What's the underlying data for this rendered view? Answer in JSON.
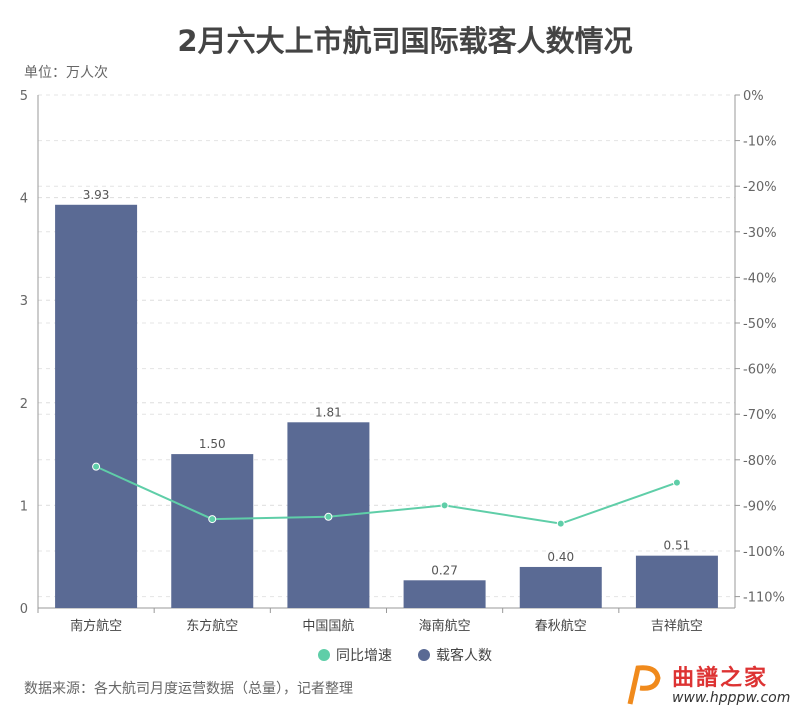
{
  "title": "2月六大上市航司国际载客人数情况",
  "unit": "单位：万人次",
  "source": "数据来源：各大航司月度运营数据（总量），记者整理",
  "watermark": {
    "name": "曲譜之家",
    "url": "www.hpppw.com"
  },
  "colors": {
    "bar": "#5a6a94",
    "line": "#5fcea8"
  },
  "chart_data": {
    "type": "bar+line",
    "title": "2月六大上市航司国际载客人数情况",
    "categories": [
      "南方航空",
      "东方航空",
      "中国国航",
      "海南航空",
      "春秋航空",
      "吉祥航空"
    ],
    "series": [
      {
        "name": "载客人数",
        "type": "bar",
        "axis": "left",
        "values": [
          3.93,
          1.5,
          1.81,
          0.27,
          0.4,
          0.51
        ],
        "labels": [
          "3.93",
          "1.50",
          "1.81",
          "0.27",
          "0.40",
          "0.51"
        ]
      },
      {
        "name": "同比增速",
        "type": "line",
        "axis": "right",
        "values": [
          -81.5,
          -93,
          -92.5,
          -90,
          -94,
          -85
        ]
      }
    ],
    "left_axis": {
      "range": [
        0,
        5
      ],
      "ticks": [
        "0",
        "1",
        "2",
        "3",
        "4",
        "5"
      ]
    },
    "right_axis": {
      "range": [
        -112.5,
        0
      ],
      "ticks": [
        "0%",
        "-10%",
        "-20%",
        "-30%",
        "-40%",
        "-50%",
        "-60%",
        "-70%",
        "-80%",
        "-90%",
        "-100%",
        "-110%"
      ]
    },
    "legend": [
      "同比增速",
      "载客人数"
    ],
    "legend_position": "bottom",
    "grid": true
  }
}
